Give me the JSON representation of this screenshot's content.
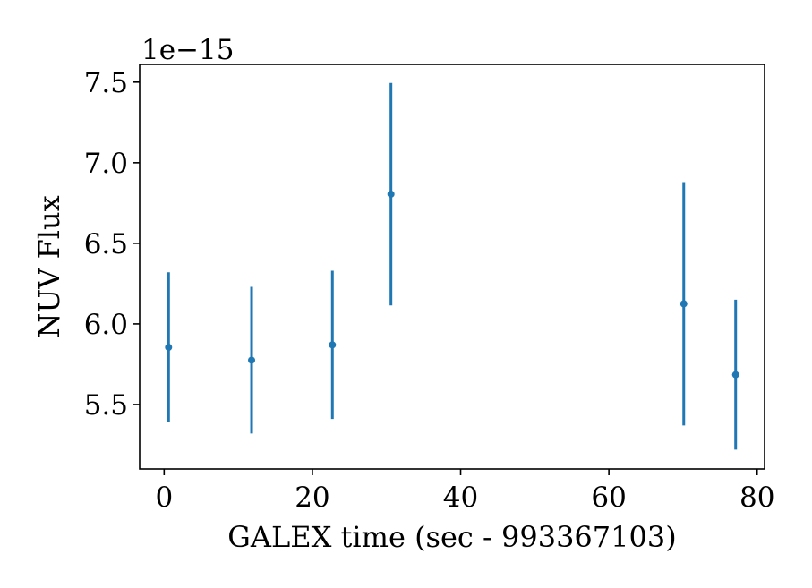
{
  "chart_data": {
    "type": "scatter",
    "xlabel": "GALEX time (sec - 993367103)",
    "ylabel": "NUV Flux",
    "y_offset_label": "1e−15",
    "y_scale_factor": 1e-15,
    "xlim": [
      -3.3,
      81
    ],
    "ylim": [
      5.1,
      7.61
    ],
    "x_ticks": [
      0,
      20,
      40,
      60,
      80
    ],
    "x_tick_labels": [
      "0",
      "20",
      "40",
      "60",
      "80"
    ],
    "y_ticks": [
      5.5,
      6.0,
      6.5,
      7.0,
      7.5
    ],
    "y_tick_labels": [
      "5.5",
      "6.0",
      "6.5",
      "7.0",
      "7.5"
    ],
    "grid": false,
    "legend": "none",
    "marker_color": "#1f77b4",
    "points": [
      {
        "x": 0.6,
        "y": 5.855,
        "yerr_low": 5.39,
        "yerr_high": 6.32
      },
      {
        "x": 11.8,
        "y": 5.775,
        "yerr_low": 5.32,
        "yerr_high": 6.23
      },
      {
        "x": 22.7,
        "y": 5.87,
        "yerr_low": 5.41,
        "yerr_high": 6.33
      },
      {
        "x": 30.6,
        "y": 6.805,
        "yerr_low": 6.115,
        "yerr_high": 7.495
      },
      {
        "x": 70.1,
        "y": 6.125,
        "yerr_low": 5.37,
        "yerr_high": 6.88
      },
      {
        "x": 77.1,
        "y": 5.685,
        "yerr_low": 5.22,
        "yerr_high": 6.15
      }
    ]
  }
}
